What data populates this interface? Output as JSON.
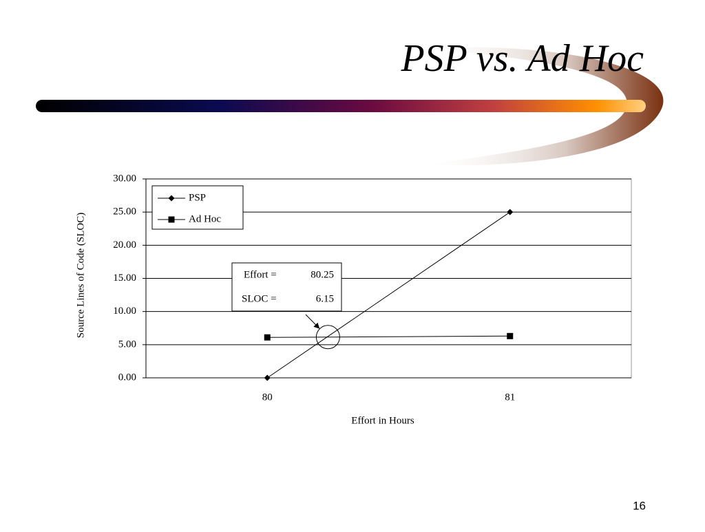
{
  "slide_title": "PSP vs. Ad Hoc",
  "page_number": "16",
  "chart_data": {
    "type": "line",
    "x_label": "Effort in Hours",
    "y_label": "Source Lines of Code (SLOC)",
    "x": [
      80,
      81
    ],
    "xlim": [
      79.5,
      81.5
    ],
    "xticks": [
      80,
      81
    ],
    "ylim": [
      0,
      30
    ],
    "yticks": [
      {
        "value": 0,
        "label": "0.00"
      },
      {
        "value": 5,
        "label": "5.00"
      },
      {
        "value": 10,
        "label": "10.00"
      },
      {
        "value": 15,
        "label": "15.00"
      },
      {
        "value": 20,
        "label": "20.00"
      },
      {
        "value": 25,
        "label": "25.00"
      },
      {
        "value": 30,
        "label": "30.00"
      }
    ],
    "grid": true,
    "legend": "upper left",
    "series": [
      {
        "name": "PSP",
        "color": "#000000",
        "marker": "diamond",
        "values": [
          0,
          25
        ]
      },
      {
        "name": "Ad Hoc",
        "color": "#000000",
        "marker": "square",
        "values": [
          6.1,
          6.3
        ]
      }
    ],
    "annotation": {
      "effort_label": "Effort =",
      "effort": 80.25,
      "sloc_label": "SLOC =",
      "sloc": 6.15
    }
  }
}
